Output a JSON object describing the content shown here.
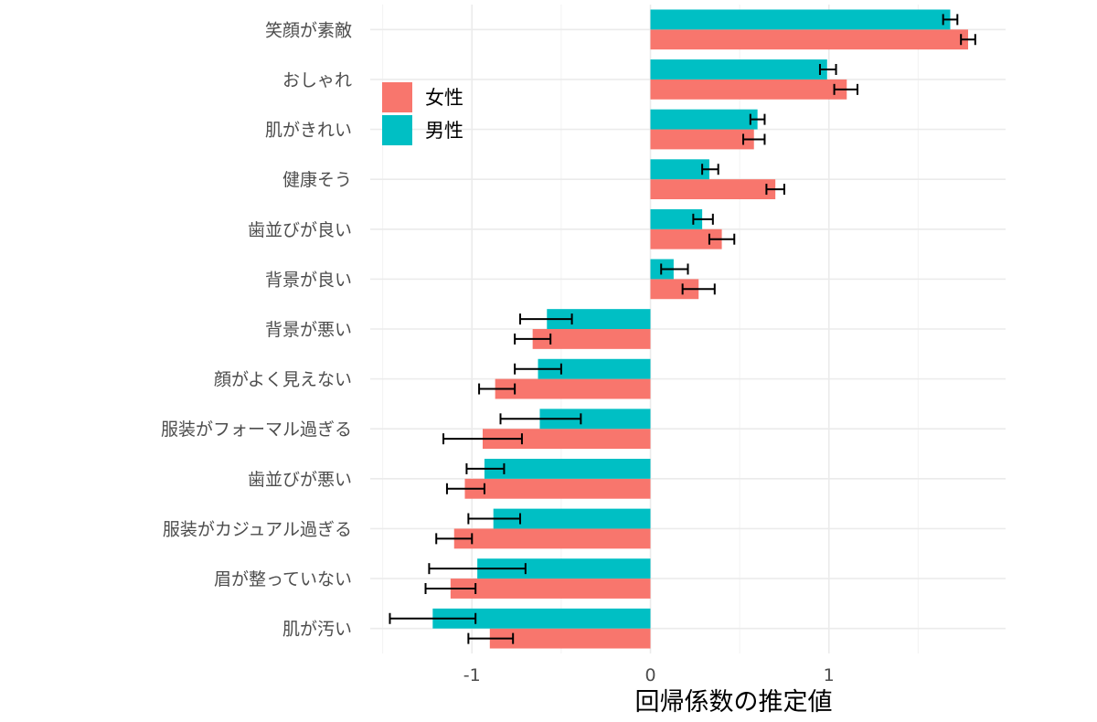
{
  "chart_data": {
    "type": "bar",
    "orientation": "horizontal",
    "title": "",
    "xlabel": "回帰係数の推定値",
    "ylabel": "",
    "xlim": [
      -1.57,
      1.99
    ],
    "xticks": [
      -1,
      0,
      1
    ],
    "xtick_labels": [
      "-1",
      "0",
      "1"
    ],
    "grid": true,
    "legend_position": "top-left inside",
    "categories": [
      "笑顔が素敵",
      "おしゃれ",
      "肌がきれい",
      "健康そう",
      "歯並びが良い",
      "背景が良い",
      "背景が悪い",
      "顔がよく見えない",
      "服装がフォーマル過ぎる",
      "歯並びが悪い",
      "服装がカジュアル過ぎる",
      "眉が整っていない",
      "肌が汚い"
    ],
    "series": [
      {
        "name": "女性",
        "color": "#F8766D",
        "values": [
          1.78,
          1.1,
          0.58,
          0.7,
          0.4,
          0.27,
          -0.66,
          -0.87,
          -0.94,
          -1.04,
          -1.1,
          -1.12,
          -0.9
        ],
        "err_low": [
          1.74,
          1.03,
          0.52,
          0.65,
          0.33,
          0.18,
          -0.76,
          -0.96,
          -1.16,
          -1.14,
          -1.2,
          -1.26,
          -1.02
        ],
        "err_high": [
          1.82,
          1.16,
          0.64,
          0.75,
          0.47,
          0.36,
          -0.56,
          -0.76,
          -0.72,
          -0.93,
          -1.0,
          -0.98,
          -0.77
        ]
      },
      {
        "name": "男性",
        "color": "#00BFC4",
        "values": [
          1.68,
          0.99,
          0.6,
          0.33,
          0.29,
          0.13,
          -0.58,
          -0.63,
          -0.62,
          -0.93,
          -0.88,
          -0.97,
          -1.22
        ],
        "err_low": [
          1.64,
          0.95,
          0.56,
          0.29,
          0.24,
          0.06,
          -0.73,
          -0.76,
          -0.84,
          -1.03,
          -1.02,
          -1.24,
          -1.46
        ],
        "err_high": [
          1.72,
          1.04,
          0.64,
          0.38,
          0.35,
          0.21,
          -0.44,
          -0.5,
          -0.39,
          -0.82,
          -0.73,
          -0.7,
          -0.98
        ]
      }
    ]
  }
}
